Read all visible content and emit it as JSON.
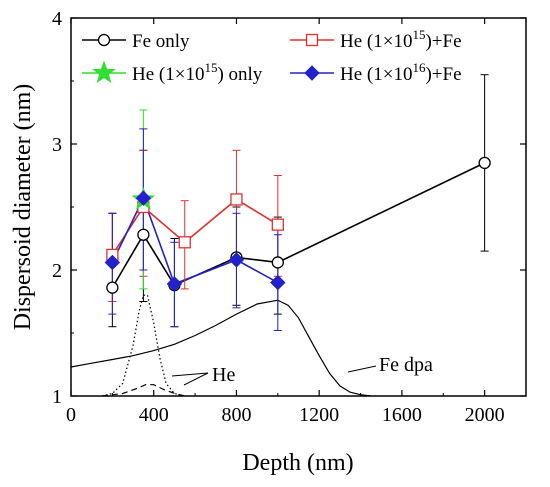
{
  "chart_data": {
    "type": "line",
    "xlabel": "Depth (nm)",
    "ylabel": "Dispersoid diameter (nm)",
    "xlim": [
      0,
      2200
    ],
    "ylim": [
      1,
      4
    ],
    "x_ticks": [
      {
        "value": 0,
        "label": "0"
      },
      {
        "value": 400,
        "label": "400"
      },
      {
        "value": 800,
        "label": "800"
      },
      {
        "value": 1200,
        "label": "1200"
      },
      {
        "value": 1600,
        "label": "1600"
      },
      {
        "value": 2000,
        "label": "2000"
      }
    ],
    "y_ticks": [
      {
        "value": 1,
        "label": "1"
      },
      {
        "value": 2,
        "label": "2"
      },
      {
        "value": 3,
        "label": "3"
      },
      {
        "value": 4,
        "label": "4"
      }
    ],
    "legend": [
      {
        "name": "Fe only",
        "sup": ""
      },
      {
        "name": "He (1×10",
        "sup": "15",
        "suffix": ")+Fe"
      },
      {
        "name": "He (1×10",
        "sup": "15",
        "suffix": ") only"
      },
      {
        "name": "He (1×10",
        "sup": "16",
        "suffix": ")+Fe"
      }
    ],
    "series": [
      {
        "marker": "open-circle",
        "color": "#000000",
        "points": [
          {
            "x": 200,
            "y": 1.86,
            "err_lo": 1.55,
            "err_hi": 2.45
          },
          {
            "x": 350,
            "y": 2.28,
            "err_lo": 1.75,
            "err_hi": 2.95
          },
          {
            "x": 500,
            "y": 1.88,
            "err_lo": 1.55,
            "err_hi": 2.25
          },
          {
            "x": 800,
            "y": 2.1,
            "err_lo": 1.72,
            "err_hi": 2.5
          },
          {
            "x": 1000,
            "y": 2.06,
            "err_lo": 1.65,
            "err_hi": 2.42
          },
          {
            "x": 2000,
            "y": 2.85,
            "err_lo": 2.15,
            "err_hi": 3.55
          }
        ]
      },
      {
        "marker": "open-square",
        "color": "#e03030",
        "points": [
          {
            "x": 200,
            "y": 2.12,
            "err_lo": 1.75,
            "err_hi": 2.45
          },
          {
            "x": 350,
            "y": 2.5,
            "err_lo": 1.95,
            "err_hi": 2.95
          },
          {
            "x": 550,
            "y": 2.22,
            "err_lo": 1.85,
            "err_hi": 2.55
          },
          {
            "x": 800,
            "y": 2.56,
            "err_lo": 2.1,
            "err_hi": 2.95
          },
          {
            "x": 1000,
            "y": 2.36,
            "err_lo": 1.95,
            "err_hi": 2.75
          }
        ]
      },
      {
        "marker": "star",
        "color": "#33dd33",
        "points": [
          {
            "x": 350,
            "y": 2.56,
            "err_lo": 1.85,
            "err_hi": 3.27
          }
        ]
      },
      {
        "marker": "filled-diamond",
        "color": "#2222cc",
        "points": [
          {
            "x": 200,
            "y": 2.06,
            "err_lo": 1.65,
            "err_hi": 2.45
          },
          {
            "x": 350,
            "y": 2.57,
            "err_lo": 2.0,
            "err_hi": 3.12
          },
          {
            "x": 500,
            "y": 1.89,
            "err_lo": 1.55,
            "err_hi": 2.22
          },
          {
            "x": 800,
            "y": 2.08,
            "err_lo": 1.7,
            "err_hi": 2.45
          },
          {
            "x": 1000,
            "y": 1.9,
            "err_lo": 1.52,
            "err_hi": 2.28
          }
        ]
      }
    ],
    "profiles": [
      {
        "name": "Fe dpa",
        "style": "solid",
        "points": [
          [
            0,
            1.23
          ],
          [
            100,
            1.26
          ],
          [
            200,
            1.29
          ],
          [
            300,
            1.32
          ],
          [
            400,
            1.36
          ],
          [
            500,
            1.41
          ],
          [
            600,
            1.48
          ],
          [
            700,
            1.56
          ],
          [
            800,
            1.65
          ],
          [
            900,
            1.73
          ],
          [
            1000,
            1.76
          ],
          [
            1050,
            1.72
          ],
          [
            1100,
            1.62
          ],
          [
            1150,
            1.47
          ],
          [
            1200,
            1.32
          ],
          [
            1250,
            1.18
          ],
          [
            1300,
            1.08
          ],
          [
            1350,
            1.03
          ],
          [
            1400,
            1.01
          ],
          [
            1450,
            1.0
          ]
        ]
      },
      {
        "name": "He 1e16",
        "style": "dotted",
        "points": [
          [
            150,
            1.0
          ],
          [
            200,
            1.02
          ],
          [
            250,
            1.1
          ],
          [
            300,
            1.4
          ],
          [
            330,
            1.68
          ],
          [
            350,
            1.8
          ],
          [
            370,
            1.8
          ],
          [
            400,
            1.58
          ],
          [
            430,
            1.3
          ],
          [
            460,
            1.1
          ],
          [
            500,
            1.02
          ],
          [
            550,
            1.0
          ]
        ]
      },
      {
        "name": "He 1e15",
        "style": "dashed",
        "points": [
          [
            150,
            1.0
          ],
          [
            250,
            1.02
          ],
          [
            320,
            1.06
          ],
          [
            360,
            1.09
          ],
          [
            400,
            1.09
          ],
          [
            450,
            1.05
          ],
          [
            520,
            1.01
          ],
          [
            560,
            1.0
          ]
        ]
      }
    ],
    "annotations": [
      {
        "text": "He"
      },
      {
        "text": "Fe dpa"
      }
    ]
  }
}
